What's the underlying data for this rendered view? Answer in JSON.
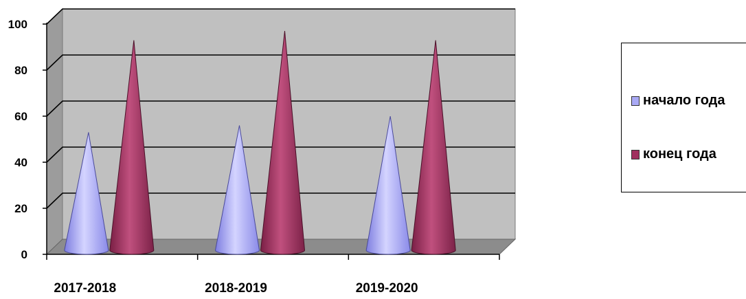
{
  "chart_data": {
    "type": "bar",
    "style": "3d-cone",
    "categories": [
      "2017-2018",
      "2018-2019",
      "2019-2020"
    ],
    "series": [
      {
        "name": "начало года",
        "values": [
          52,
          55,
          59
        ],
        "color": "#a9a9f5"
      },
      {
        "name": "конец года",
        "values": [
          92,
          96,
          92
        ],
        "color": "#a0305e"
      }
    ],
    "y_ticks": [
      "0",
      "20",
      "40",
      "60",
      "80",
      "100"
    ],
    "ylim": [
      0,
      100
    ],
    "grid": true,
    "legend_position": "right",
    "wall_color": "#c0c0c0"
  }
}
